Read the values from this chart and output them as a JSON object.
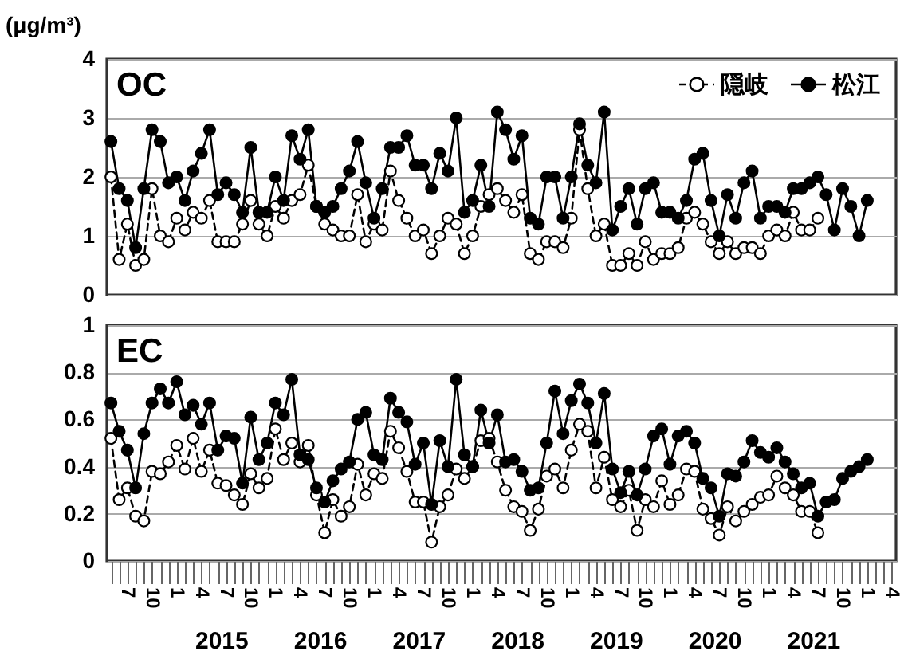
{
  "chart_data": [
    {
      "type": "line",
      "title": "OC",
      "ylabel": "(μg/m³)",
      "categories": [
        null,
        null,
        "7",
        null,
        null,
        "10",
        null,
        null,
        "1",
        null,
        null,
        "4",
        null,
        null,
        "7",
        null,
        null,
        "10",
        null,
        null,
        "1",
        null,
        null,
        "4",
        null,
        null,
        "7",
        null,
        null,
        "10",
        null,
        null,
        "1",
        null,
        null,
        "4",
        null,
        null,
        "7",
        null,
        null,
        "10",
        null,
        null,
        "1",
        null,
        null,
        "4",
        null,
        null,
        "7",
        null,
        null,
        "10",
        null,
        null,
        "1",
        null,
        null,
        "4",
        null,
        null,
        "7",
        null,
        null,
        "10",
        null,
        null,
        "1",
        null,
        null,
        "4",
        null,
        null,
        "7",
        null,
        null,
        "10",
        null,
        null,
        "1",
        null,
        null,
        "4",
        null,
        null,
        "7",
        null,
        null,
        "10",
        null,
        null,
        "1",
        null,
        null,
        "4"
      ],
      "series": [
        {
          "name": "隠岐",
          "color": "#ffffff",
          "line_style": "dashed",
          "values": [
            2.0,
            0.6,
            1.2,
            0.5,
            0.6,
            1.8,
            1.0,
            0.9,
            1.3,
            1.1,
            1.4,
            1.3,
            1.6,
            0.9,
            0.9,
            0.9,
            1.2,
            1.6,
            1.2,
            1.0,
            1.5,
            1.3,
            1.6,
            1.7,
            2.2,
            1.5,
            1.2,
            1.1,
            1.0,
            1.0,
            1.7,
            0.9,
            1.2,
            1.1,
            2.1,
            1.6,
            1.3,
            1.0,
            1.1,
            0.7,
            1.0,
            1.3,
            1.2,
            0.7,
            1.0,
            1.5,
            1.7,
            1.8,
            1.6,
            1.4,
            1.7,
            0.7,
            0.6,
            0.9,
            0.9,
            0.8,
            1.3,
            2.8,
            1.8,
            1.0,
            1.2,
            0.5,
            0.5,
            0.7,
            0.5,
            0.9,
            0.6,
            0.7,
            0.7,
            0.8,
            1.3,
            1.4,
            1.2,
            0.9,
            0.7,
            0.9,
            0.7,
            0.8,
            0.8,
            0.7,
            1.0,
            1.1,
            1.0,
            1.4,
            1.1,
            1.1,
            1.3,
            null,
            null,
            null,
            null,
            null,
            null,
            null,
            null,
            null
          ]
        },
        {
          "name": "松江",
          "color": "#000000",
          "line_style": "solid",
          "values": [
            2.6,
            1.8,
            1.6,
            0.8,
            1.8,
            2.8,
            2.6,
            1.9,
            2.0,
            1.6,
            2.1,
            2.4,
            2.8,
            1.7,
            1.9,
            1.7,
            1.4,
            2.5,
            1.4,
            1.4,
            2.0,
            1.6,
            2.7,
            2.3,
            2.8,
            1.5,
            1.4,
            1.5,
            1.8,
            2.1,
            2.6,
            1.9,
            1.3,
            1.8,
            2.5,
            2.5,
            2.7,
            2.2,
            2.2,
            1.8,
            2.4,
            2.1,
            3.0,
            1.4,
            1.6,
            2.2,
            1.5,
            3.1,
            2.8,
            2.3,
            2.7,
            1.3,
            1.2,
            2.0,
            2.0,
            1.3,
            2.0,
            2.9,
            2.2,
            1.9,
            3.1,
            1.1,
            1.5,
            1.8,
            1.2,
            1.8,
            1.9,
            1.4,
            1.4,
            1.3,
            1.6,
            2.3,
            2.4,
            1.6,
            1.0,
            1.7,
            1.3,
            1.9,
            2.1,
            1.3,
            1.5,
            1.5,
            1.4,
            1.8,
            1.8,
            1.9,
            2.0,
            1.7,
            1.1,
            1.8,
            1.5,
            1.0,
            1.6,
            null,
            null,
            null
          ]
        }
      ],
      "ylim": [
        0,
        4
      ],
      "yticks": [
        0,
        1,
        2,
        3,
        4
      ],
      "grid": "y",
      "legend": "top right",
      "marker": "circle",
      "tick_labels": "y"
    },
    {
      "type": "line",
      "title": "EC",
      "categories": [
        null,
        null,
        "7",
        null,
        null,
        "10",
        null,
        null,
        "1",
        null,
        null,
        "4",
        null,
        null,
        "7",
        null,
        null,
        "10",
        null,
        null,
        "1",
        null,
        null,
        "4",
        null,
        null,
        "7",
        null,
        null,
        "10",
        null,
        null,
        "1",
        null,
        null,
        "4",
        null,
        null,
        "7",
        null,
        null,
        "10",
        null,
        null,
        "1",
        null,
        null,
        "4",
        null,
        null,
        "7",
        null,
        null,
        "10",
        null,
        null,
        "1",
        null,
        null,
        "4",
        null,
        null,
        "7",
        null,
        null,
        "10",
        null,
        null,
        "1",
        null,
        null,
        "4",
        null,
        null,
        "7",
        null,
        null,
        "10",
        null,
        null,
        "1",
        null,
        null,
        "4",
        null,
        null,
        "7",
        null,
        null,
        "10",
        null,
        null,
        "1",
        null,
        null,
        "4"
      ],
      "series": [
        {
          "color": "#ffffff",
          "line_style": "dashed",
          "values": [
            0.52,
            0.26,
            0.31,
            0.19,
            0.17,
            0.38,
            0.37,
            0.42,
            0.49,
            0.39,
            0.52,
            0.38,
            0.47,
            0.33,
            0.32,
            0.28,
            0.24,
            0.37,
            0.31,
            0.35,
            0.56,
            0.43,
            0.5,
            0.42,
            0.49,
            0.28,
            0.12,
            0.26,
            0.19,
            0.23,
            0.41,
            0.28,
            0.37,
            0.35,
            0.55,
            0.48,
            0.38,
            0.25,
            0.25,
            0.08,
            0.23,
            0.28,
            0.39,
            0.35,
            0.4,
            0.51,
            0.52,
            0.42,
            0.3,
            0.23,
            0.21,
            0.13,
            0.22,
            0.36,
            0.39,
            0.31,
            0.47,
            0.58,
            0.55,
            0.31,
            0.44,
            0.26,
            0.23,
            0.3,
            0.13,
            0.26,
            0.23,
            0.34,
            0.24,
            0.28,
            0.39,
            0.38,
            0.22,
            0.18,
            0.11,
            0.23,
            0.17,
            0.21,
            0.24,
            0.27,
            0.28,
            0.36,
            0.31,
            0.28,
            0.21,
            0.21,
            0.12,
            null,
            null,
            null,
            null,
            null,
            null,
            null,
            null,
            null
          ]
        },
        {
          "color": "#000000",
          "line_style": "solid",
          "values": [
            0.67,
            0.55,
            0.47,
            0.31,
            0.54,
            0.67,
            0.73,
            0.67,
            0.76,
            0.62,
            0.66,
            0.58,
            0.67,
            0.47,
            0.53,
            0.52,
            0.33,
            0.61,
            0.43,
            0.5,
            0.67,
            0.62,
            0.77,
            0.45,
            0.43,
            0.31,
            0.25,
            0.34,
            0.39,
            0.42,
            0.6,
            0.63,
            0.45,
            0.43,
            0.69,
            0.63,
            0.59,
            0.41,
            0.5,
            0.24,
            0.51,
            0.4,
            0.77,
            0.45,
            0.4,
            0.64,
            0.5,
            0.62,
            0.42,
            0.43,
            0.38,
            0.3,
            0.31,
            0.5,
            0.72,
            0.54,
            0.68,
            0.75,
            0.67,
            0.5,
            0.71,
            0.39,
            0.29,
            0.38,
            0.28,
            0.39,
            0.53,
            0.56,
            0.41,
            0.53,
            0.55,
            0.5,
            0.35,
            0.31,
            0.19,
            0.37,
            0.36,
            0.42,
            0.51,
            0.46,
            0.44,
            0.48,
            0.42,
            0.37,
            0.31,
            0.33,
            0.19,
            0.25,
            0.26,
            0.35,
            0.38,
            0.4,
            0.43,
            null,
            null,
            null
          ]
        }
      ],
      "ylim": [
        0,
        1
      ],
      "yticks": [
        0,
        0.2,
        0.4,
        0.6,
        0.8,
        1
      ],
      "grid": "y",
      "marker": "circle",
      "annotations": [
        "2015",
        "2016",
        "2017",
        "2018",
        "2019",
        "2020",
        "2021"
      ]
    }
  ]
}
